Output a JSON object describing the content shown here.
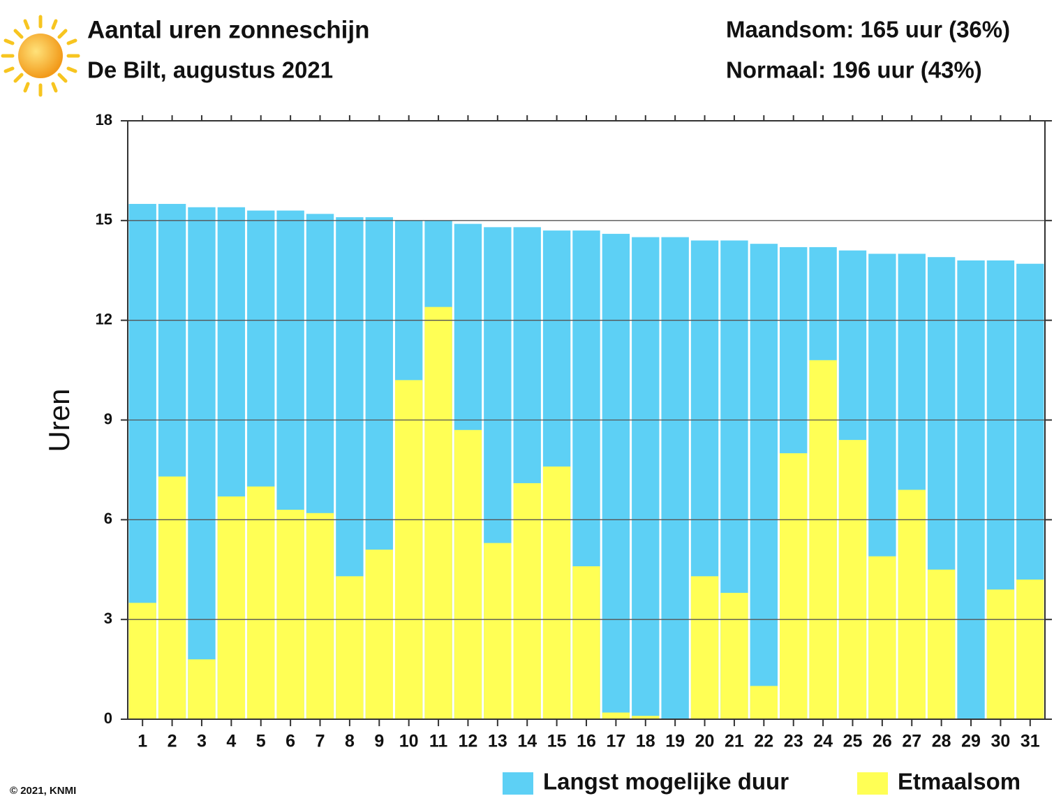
{
  "chart_data": {
    "type": "bar",
    "barmode": "overlay",
    "title": "Aantal uren zonneschijn",
    "subtitle": "De Bilt, augustus 2021",
    "annotations": [
      "Maandsom: 165 uur (36%)",
      "Normaal: 196 uur (43%)"
    ],
    "footer": "© 2021, KNMI",
    "y_label": "Uren",
    "categories": [
      "1",
      "2",
      "3",
      "4",
      "5",
      "6",
      "7",
      "8",
      "9",
      "10",
      "11",
      "12",
      "13",
      "14",
      "15",
      "16",
      "17",
      "18",
      "19",
      "20",
      "21",
      "22",
      "23",
      "24",
      "25",
      "26",
      "27",
      "28",
      "29",
      "30",
      "31"
    ],
    "series": [
      {
        "name": "Langst mogelijke duur",
        "color": "#5dd0f5",
        "values": [
          15.5,
          15.5,
          15.4,
          15.4,
          15.3,
          15.3,
          15.2,
          15.1,
          15.1,
          15.0,
          15.0,
          14.9,
          14.8,
          14.8,
          14.7,
          14.7,
          14.6,
          14.5,
          14.5,
          14.4,
          14.4,
          14.3,
          14.2,
          14.2,
          14.1,
          14.0,
          14.0,
          13.9,
          13.8,
          13.8,
          13.7
        ]
      },
      {
        "name": "Etmaalsom",
        "color": "#ffff55",
        "values": [
          3.5,
          7.3,
          1.8,
          6.7,
          7.0,
          6.3,
          6.2,
          4.3,
          5.1,
          10.2,
          12.4,
          8.7,
          5.3,
          7.1,
          7.6,
          4.6,
          0.2,
          0.1,
          0,
          4.3,
          3.8,
          1.0,
          8.0,
          10.8,
          8.4,
          4.9,
          6.9,
          4.5,
          0,
          3.9,
          4.2
        ]
      }
    ],
    "ylim": [
      0,
      18
    ],
    "yticks": [
      0,
      3,
      6,
      9,
      12,
      15,
      18
    ],
    "grid": true,
    "legend": "bottom"
  }
}
